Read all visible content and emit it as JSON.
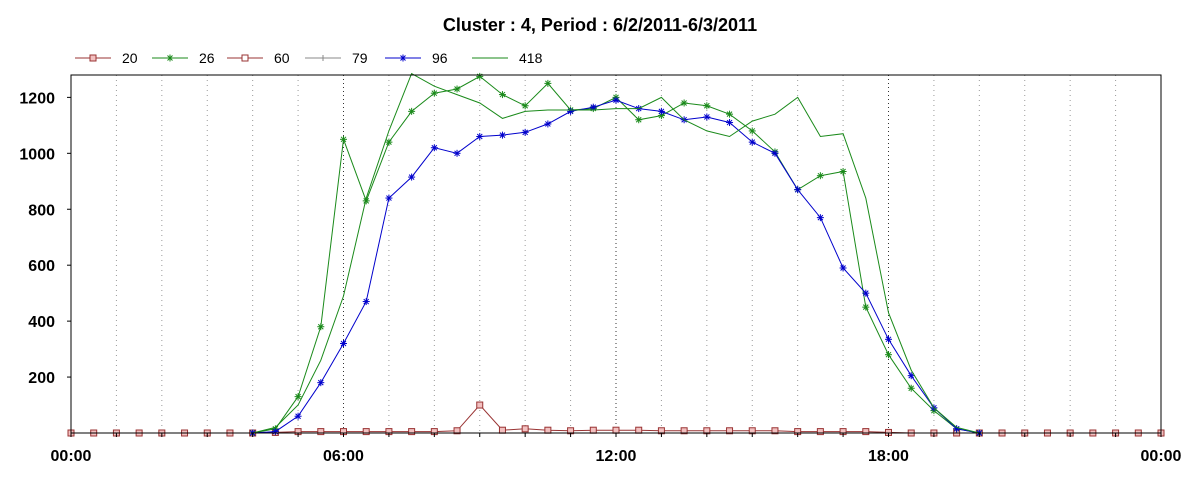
{
  "chart_data": {
    "type": "line",
    "title": "Cluster : 4, Period : 6/2/2011-6/3/2011",
    "xlabel": "",
    "ylabel": "",
    "xlim": [
      0,
      24
    ],
    "ylim": [
      0,
      1280
    ],
    "x_ticks": [
      0,
      6,
      12,
      18,
      24
    ],
    "x_tick_labels": [
      "00:00",
      "06:00",
      "12:00",
      "18:00",
      "00:00"
    ],
    "y_ticks": [
      200,
      400,
      600,
      800,
      1000,
      1200
    ],
    "y_tick_labels": [
      "200",
      "400",
      "600",
      "800",
      "1000",
      "1200"
    ],
    "grid": "vertical dotted",
    "legend_position": "top-left",
    "series": [
      {
        "name": "20",
        "color": "#993333",
        "marker": "square",
        "points": [
          [
            0,
            0
          ],
          [
            0.5,
            0
          ],
          [
            1,
            0
          ],
          [
            1.5,
            0
          ],
          [
            2,
            0
          ],
          [
            2.5,
            0
          ],
          [
            3,
            0
          ],
          [
            3.5,
            0
          ],
          [
            4,
            0
          ],
          [
            4.5,
            2
          ],
          [
            5,
            5
          ],
          [
            5.5,
            5
          ],
          [
            6,
            5
          ],
          [
            6.5,
            5
          ],
          [
            7,
            5
          ],
          [
            7.5,
            5
          ],
          [
            8,
            5
          ],
          [
            8.5,
            8
          ],
          [
            9,
            100
          ],
          [
            9.5,
            10
          ],
          [
            10,
            15
          ],
          [
            10.5,
            10
          ],
          [
            11,
            8
          ],
          [
            11.5,
            10
          ],
          [
            12,
            10
          ],
          [
            12.5,
            10
          ],
          [
            13,
            8
          ],
          [
            13.5,
            8
          ],
          [
            14,
            8
          ],
          [
            14.5,
            8
          ],
          [
            15,
            8
          ],
          [
            15.5,
            8
          ],
          [
            16,
            5
          ],
          [
            16.5,
            5
          ],
          [
            17,
            5
          ],
          [
            17.5,
            5
          ],
          [
            18,
            2
          ],
          [
            18.5,
            0
          ],
          [
            19,
            0
          ],
          [
            19.5,
            0
          ],
          [
            20,
            0
          ],
          [
            20.5,
            0
          ],
          [
            21,
            0
          ],
          [
            21.5,
            0
          ],
          [
            22,
            0
          ],
          [
            22.5,
            0
          ],
          [
            23,
            0
          ],
          [
            23.5,
            0
          ],
          [
            24,
            0
          ]
        ]
      },
      {
        "name": "26",
        "color": "#1a8a1a",
        "marker": "asterisk",
        "points": [
          [
            4,
            0
          ],
          [
            4.5,
            15
          ],
          [
            5,
            130
          ],
          [
            5.5,
            380
          ],
          [
            6,
            1050
          ],
          [
            6.5,
            830
          ],
          [
            7,
            1040
          ],
          [
            7.5,
            1150
          ],
          [
            8,
            1215
          ],
          [
            8.5,
            1230
          ],
          [
            9,
            1275
          ],
          [
            9.5,
            1210
          ],
          [
            10,
            1170
          ],
          [
            10.5,
            1250
          ],
          [
            11,
            1155
          ],
          [
            11.5,
            1160
          ],
          [
            12,
            1200
          ],
          [
            12.5,
            1120
          ],
          [
            13,
            1135
          ],
          [
            13.5,
            1180
          ],
          [
            14,
            1170
          ],
          [
            14.5,
            1140
          ],
          [
            15,
            1080
          ],
          [
            15.5,
            1005
          ],
          [
            16,
            870
          ],
          [
            16.5,
            920
          ],
          [
            17,
            935
          ],
          [
            17.5,
            450
          ],
          [
            18,
            280
          ],
          [
            18.5,
            160
          ],
          [
            19,
            80
          ],
          [
            19.5,
            15
          ],
          [
            20,
            0
          ]
        ]
      },
      {
        "name": "60",
        "color": "#993333",
        "marker": "square-open",
        "points": []
      },
      {
        "name": "79",
        "color": "#888888",
        "marker": "plus",
        "points": []
      },
      {
        "name": "96",
        "color": "#0000cc",
        "marker": "asterisk",
        "points": [
          [
            4,
            0
          ],
          [
            4.5,
            5
          ],
          [
            5,
            60
          ],
          [
            5.5,
            180
          ],
          [
            6,
            320
          ],
          [
            6.5,
            470
          ],
          [
            7,
            840
          ],
          [
            7.5,
            915
          ],
          [
            8,
            1020
          ],
          [
            8.5,
            1000
          ],
          [
            9,
            1060
          ],
          [
            9.5,
            1065
          ],
          [
            10,
            1075
          ],
          [
            10.5,
            1105
          ],
          [
            11,
            1150
          ],
          [
            11.5,
            1165
          ],
          [
            12,
            1190
          ],
          [
            12.5,
            1160
          ],
          [
            13,
            1150
          ],
          [
            13.5,
            1120
          ],
          [
            14,
            1130
          ],
          [
            14.5,
            1110
          ],
          [
            15,
            1040
          ],
          [
            15.5,
            1000
          ],
          [
            16,
            870
          ],
          [
            16.5,
            770
          ],
          [
            17,
            590
          ],
          [
            17.5,
            500
          ],
          [
            18,
            335
          ],
          [
            18.5,
            205
          ],
          [
            19,
            90
          ],
          [
            19.5,
            15
          ],
          [
            20,
            0
          ]
        ]
      },
      {
        "name": "418",
        "color": "#1a8a1a",
        "marker": "none",
        "points": [
          [
            4,
            0
          ],
          [
            4.5,
            20
          ],
          [
            5,
            100
          ],
          [
            5.5,
            260
          ],
          [
            6,
            490
          ],
          [
            6.5,
            840
          ],
          [
            7,
            1080
          ],
          [
            7.5,
            1285
          ],
          [
            8,
            1240
          ],
          [
            8.5,
            1210
          ],
          [
            9,
            1180
          ],
          [
            9.5,
            1125
          ],
          [
            10,
            1150
          ],
          [
            10.5,
            1155
          ],
          [
            11,
            1155
          ],
          [
            11.5,
            1155
          ],
          [
            12,
            1160
          ],
          [
            12.5,
            1160
          ],
          [
            13,
            1200
          ],
          [
            13.5,
            1120
          ],
          [
            14,
            1080
          ],
          [
            14.5,
            1060
          ],
          [
            15,
            1115
          ],
          [
            15.5,
            1140
          ],
          [
            16,
            1200
          ],
          [
            16.5,
            1060
          ],
          [
            17,
            1070
          ],
          [
            17.5,
            840
          ],
          [
            18,
            430
          ],
          [
            18.5,
            225
          ],
          [
            19,
            90
          ],
          [
            19.5,
            20
          ],
          [
            20,
            0
          ]
        ]
      }
    ]
  }
}
